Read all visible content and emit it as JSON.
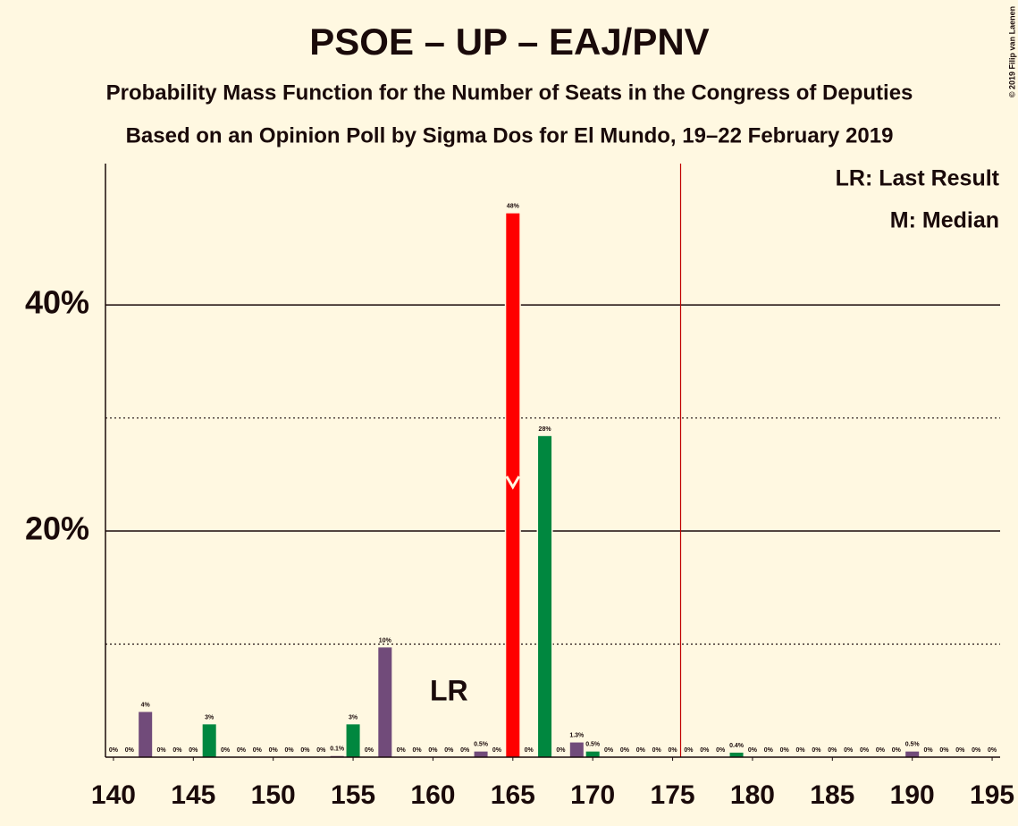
{
  "chart_data": {
    "type": "bar",
    "title": "PSOE – UP – EAJ/PNV",
    "subtitle": "Probability Mass Function for the Number of Seats in the Congress of Deputies",
    "subtitle2": "Based on an Opinion Poll by Sigma Dos for El Mundo, 19–22 February 2019",
    "copyright": "© 2019 Filip van Laenen",
    "legend": [
      "LR: Last Result",
      "M: Median"
    ],
    "last_result": 161,
    "last_result_label": "LR",
    "median": 165,
    "majority_line": 175.5,
    "x": [
      140,
      141,
      142,
      143,
      144,
      145,
      146,
      147,
      148,
      149,
      150,
      151,
      152,
      153,
      154,
      155,
      156,
      157,
      158,
      159,
      160,
      161,
      162,
      163,
      164,
      165,
      166,
      167,
      168,
      169,
      170,
      171,
      172,
      173,
      174,
      175,
      176,
      177,
      178,
      179,
      180,
      181,
      182,
      183,
      184,
      185,
      186,
      187,
      188,
      189,
      190,
      191,
      192,
      193,
      194,
      195
    ],
    "values": [
      0,
      0,
      4,
      0,
      0,
      0,
      2.9,
      0,
      0,
      0,
      0,
      0,
      0,
      0,
      0.1,
      2.9,
      0,
      9.7,
      0,
      0,
      0,
      0,
      0,
      0.5,
      0,
      48.1,
      0,
      28.4,
      0,
      1.3,
      0.5,
      0,
      0,
      0,
      0,
      0,
      0,
      0,
      0,
      0.4,
      0,
      0,
      0,
      0,
      0,
      0,
      0,
      0,
      0,
      0,
      0.5,
      0,
      0,
      0,
      0,
      0
    ],
    "value_labels": [
      "0%",
      "0%",
      "4%",
      "0%",
      "0%",
      "0%",
      "3%",
      "0%",
      "0%",
      "0%",
      "0%",
      "0%",
      "0%",
      "0%",
      "0.1%",
      "3%",
      "0%",
      "10%",
      "0%",
      "0%",
      "0%",
      "0%",
      "0%",
      "0.5%",
      "0%",
      "48%",
      "0%",
      "28%",
      "0%",
      "1.3%",
      "0.5%",
      "0%",
      "0%",
      "0%",
      "0%",
      "0%",
      "0%",
      "0%",
      "0%",
      "0.4%",
      "0%",
      "0%",
      "0%",
      "0%",
      "0%",
      "0%",
      "0%",
      "0%",
      "0%",
      "0%",
      "0.5%",
      "0%",
      "0%",
      "0%",
      "0%",
      "0%"
    ],
    "colors": [
      "#714b7a",
      "#714b7a",
      "#714b7a",
      "#714b7a",
      "#714b7a",
      "#714b7a",
      "#00873f",
      "#714b7a",
      "#714b7a",
      "#714b7a",
      "#714b7a",
      "#714b7a",
      "#714b7a",
      "#714b7a",
      "#714b7a",
      "#00873f",
      "#714b7a",
      "#714b7a",
      "#714b7a",
      "#714b7a",
      "#714b7a",
      "#714b7a",
      "#714b7a",
      "#714b7a",
      "#714b7a",
      "#ff0000",
      "#714b7a",
      "#00873f",
      "#714b7a",
      "#714b7a",
      "#00873f",
      "#714b7a",
      "#714b7a",
      "#714b7a",
      "#714b7a",
      "#714b7a",
      "#714b7a",
      "#714b7a",
      "#714b7a",
      "#00873f",
      "#714b7a",
      "#714b7a",
      "#714b7a",
      "#714b7a",
      "#714b7a",
      "#714b7a",
      "#714b7a",
      "#714b7a",
      "#714b7a",
      "#714b7a",
      "#714b7a",
      "#714b7a",
      "#714b7a",
      "#714b7a",
      "#714b7a",
      "#714b7a"
    ],
    "xlim": [
      139.5,
      195.5
    ],
    "ylim": [
      0,
      52.5
    ],
    "xticks": [
      140,
      145,
      150,
      155,
      160,
      165,
      170,
      175,
      180,
      185,
      190,
      195
    ],
    "yticks": [
      {
        "value": 20,
        "label": "20%"
      },
      {
        "value": 40,
        "label": "40%"
      }
    ],
    "minor_yticks": [
      10,
      30
    ],
    "majority_color": "#c00000"
  }
}
